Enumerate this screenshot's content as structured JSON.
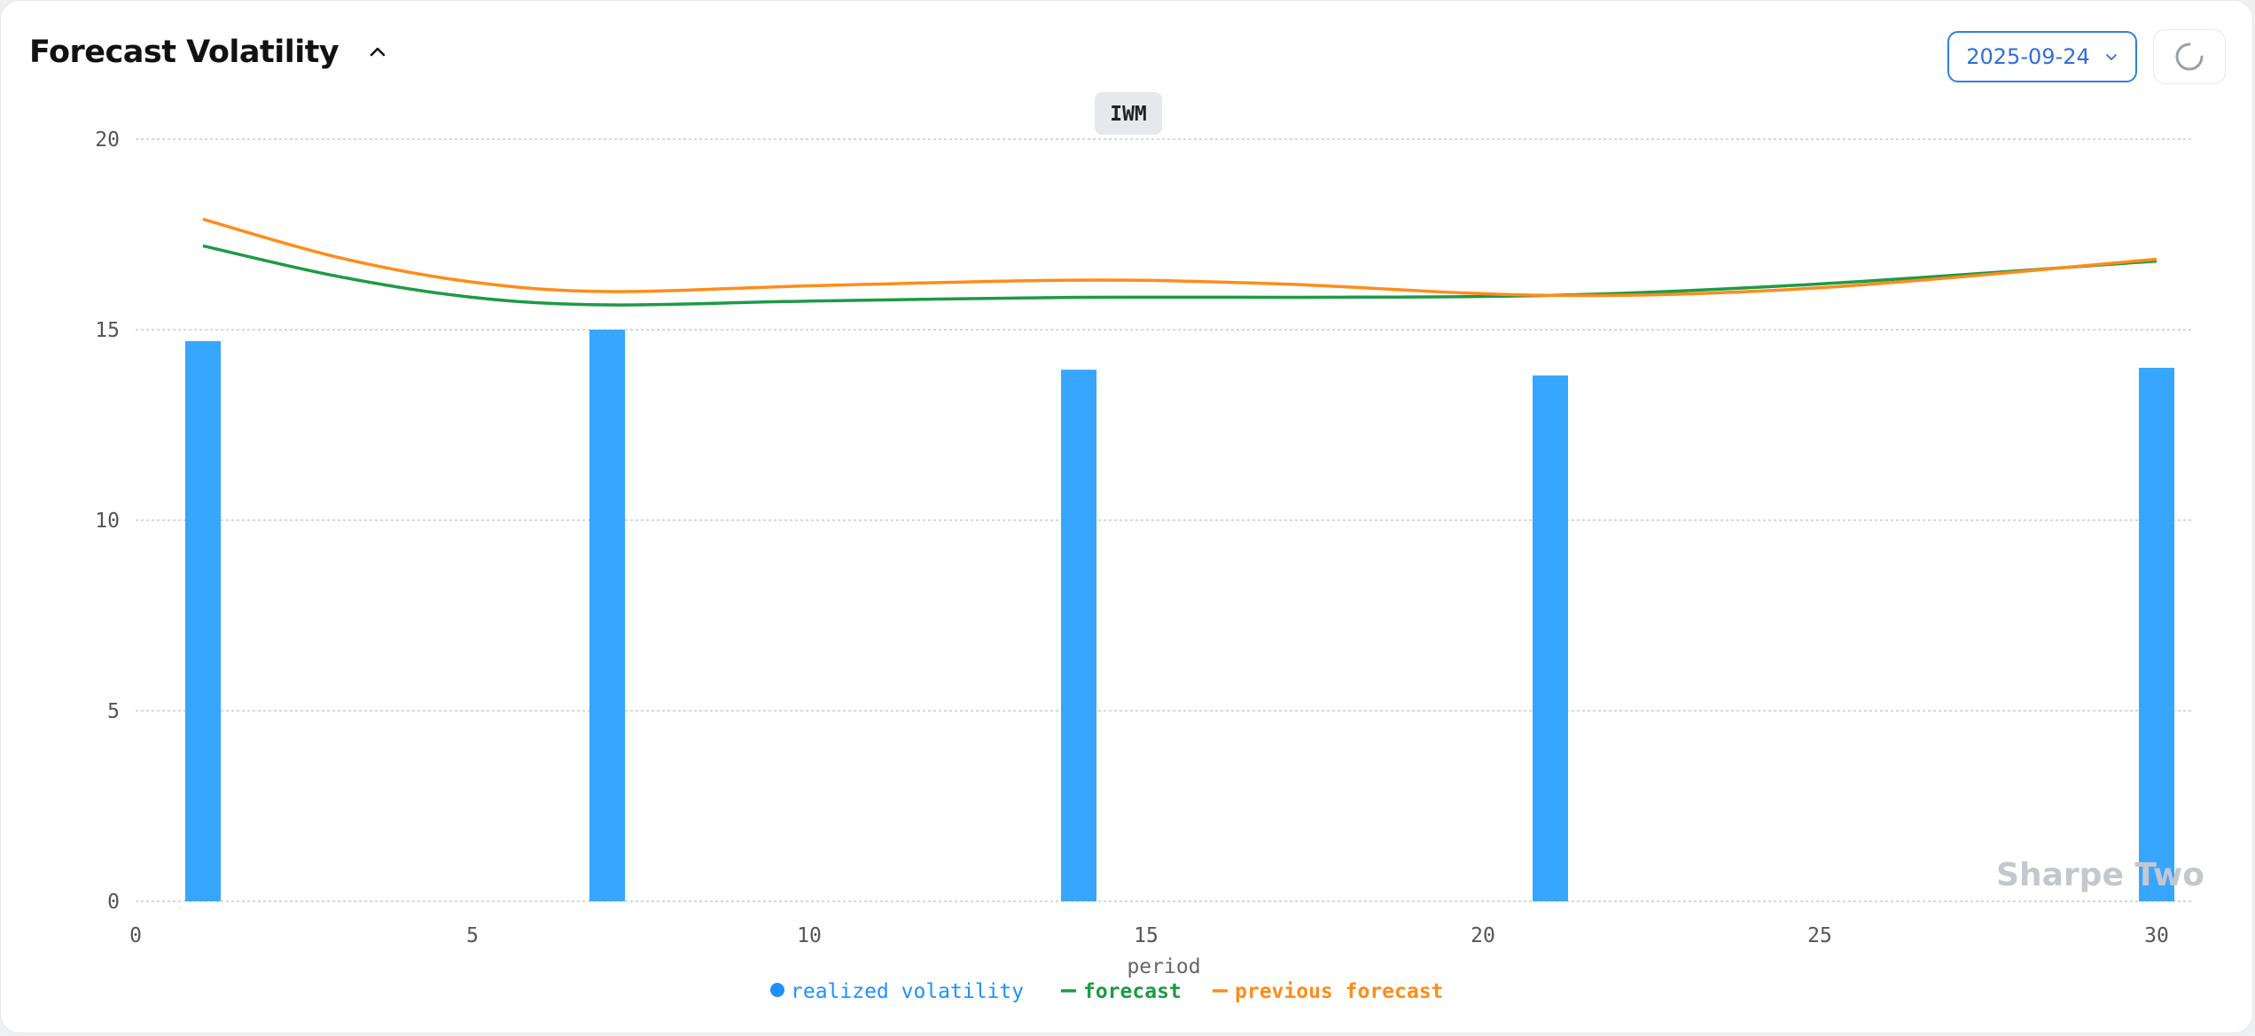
{
  "header": {
    "title": "Forecast Volatility",
    "collapse_icon": "chevron-up-icon",
    "date_value": "2025-09-24",
    "date_icon": "chevron-down-icon",
    "refresh_icon": "loading-spinner-icon"
  },
  "watermark": "Sharpe Two",
  "colors": {
    "bar": "#36a6ff",
    "forecast": "#1e9a46",
    "previous_forecast": "#ff8c1a",
    "legend_realized": "#1e90ff",
    "accent": "#2f7fe0"
  },
  "chart_data": {
    "type": "bar",
    "title": "IWM",
    "xlabel": "period",
    "ylabel": "",
    "xlim": [
      0,
      30
    ],
    "ylim": [
      0,
      20
    ],
    "x_ticks": [
      0,
      5,
      10,
      15,
      20,
      25,
      30
    ],
    "y_ticks": [
      0,
      5,
      10,
      15,
      20
    ],
    "grid": "horizontal dotted",
    "legend_position": "bottom",
    "legend": [
      "realized volatility",
      "forecast",
      "previous forecast"
    ],
    "bars": {
      "name": "realized volatility",
      "x": [
        1,
        7,
        14,
        21,
        30
      ],
      "values": [
        14.7,
        15.0,
        13.95,
        13.8,
        14.0
      ]
    },
    "series": [
      {
        "name": "forecast",
        "type": "line",
        "x": [
          1,
          3,
          5,
          7,
          10,
          14,
          17,
          21,
          25,
          30
        ],
        "values": [
          17.2,
          16.4,
          15.85,
          15.65,
          15.75,
          15.85,
          15.85,
          15.9,
          16.2,
          16.8
        ]
      },
      {
        "name": "previous forecast",
        "type": "line",
        "x": [
          1,
          3,
          5,
          7,
          10,
          14,
          17,
          21,
          25,
          30
        ],
        "values": [
          17.9,
          16.9,
          16.25,
          16.0,
          16.15,
          16.3,
          16.2,
          15.9,
          16.1,
          16.85
        ]
      }
    ]
  }
}
